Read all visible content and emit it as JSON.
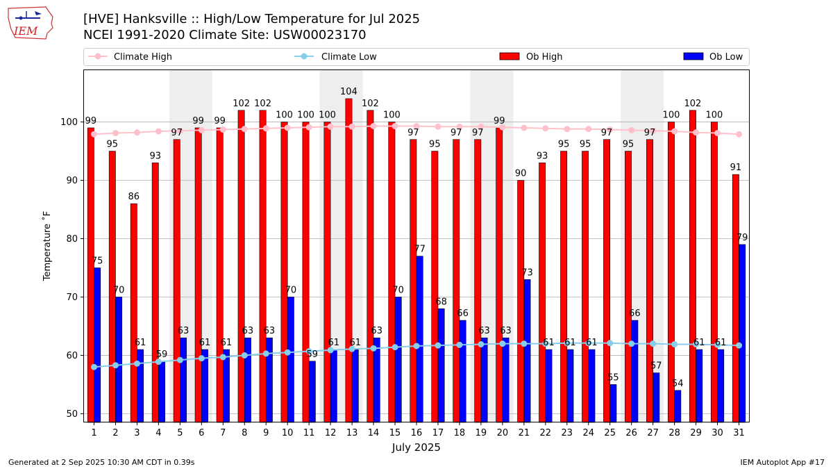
{
  "header": {
    "title_line1": "[HVE] Hanksville :: High/Low Temperature for Jul 2025",
    "title_line2": "NCEI 1991-2020 Climate Site: USW00023170",
    "logo_text": "IEM"
  },
  "footer": {
    "generated": "Generated at 2 Sep 2025 10:30 AM CDT in 0.39s",
    "app": "IEM Autoplot App #17"
  },
  "colors": {
    "ob_high": "#ff0000",
    "ob_low": "#0000ff",
    "climate_high": "#ffc0cb",
    "climate_low": "#87ceeb",
    "weekend_band": "#eeeeee",
    "grid": "#b0b0b0"
  },
  "chart_data": {
    "type": "bar",
    "title": "[HVE] Hanksville :: High/Low Temperature for Jul 2025",
    "xlabel": "July 2025",
    "ylabel": "Temperature ˚F",
    "ylim": [
      48.5,
      109
    ],
    "yticks": [
      50,
      60,
      70,
      80,
      90,
      100
    ],
    "grid": true,
    "legend_position": "top",
    "legend": [
      "Climate High",
      "Climate Low",
      "Ob High",
      "Ob Low"
    ],
    "categories": [
      "1",
      "2",
      "3",
      "4",
      "5",
      "6",
      "7",
      "8",
      "9",
      "10",
      "11",
      "12",
      "13",
      "14",
      "15",
      "16",
      "17",
      "18",
      "19",
      "20",
      "21",
      "22",
      "23",
      "24",
      "25",
      "26",
      "27",
      "28",
      "29",
      "30",
      "31"
    ],
    "weekend_days": [
      5,
      6,
      12,
      13,
      19,
      20,
      26,
      27
    ],
    "series": [
      {
        "name": "Ob High",
        "kind": "bar",
        "values": [
          99,
          95,
          86,
          93,
          97,
          99,
          99,
          102,
          102,
          100,
          100,
          100,
          104,
          102,
          100,
          97,
          95,
          97,
          97,
          99,
          90,
          93,
          95,
          95,
          97,
          95,
          97,
          100,
          102,
          100,
          91
        ]
      },
      {
        "name": "Ob Low",
        "kind": "bar",
        "values": [
          75,
          70,
          61,
          59,
          63,
          61,
          61,
          63,
          63,
          70,
          59,
          61,
          61,
          63,
          70,
          77,
          68,
          66,
          63,
          63,
          73,
          61,
          61,
          61,
          55,
          66,
          57,
          54,
          61,
          61,
          79
        ]
      },
      {
        "name": "Climate High",
        "kind": "line",
        "values": [
          97.9,
          98.1,
          98.2,
          98.4,
          98.5,
          98.6,
          98.7,
          98.8,
          98.9,
          99.0,
          99.1,
          99.2,
          99.2,
          99.3,
          99.3,
          99.3,
          99.2,
          99.2,
          99.2,
          99.1,
          99.0,
          98.9,
          98.8,
          98.8,
          98.7,
          98.6,
          98.5,
          98.4,
          98.2,
          98.1,
          97.9
        ]
      },
      {
        "name": "Climate Low",
        "kind": "line",
        "values": [
          58.0,
          58.3,
          58.6,
          58.9,
          59.2,
          59.5,
          59.7,
          60.0,
          60.3,
          60.5,
          60.7,
          60.9,
          61.1,
          61.2,
          61.4,
          61.6,
          61.7,
          61.8,
          61.9,
          62.0,
          62.0,
          62.0,
          62.1,
          62.1,
          62.1,
          62.0,
          62.0,
          61.9,
          61.9,
          61.8,
          61.7
        ]
      }
    ]
  }
}
